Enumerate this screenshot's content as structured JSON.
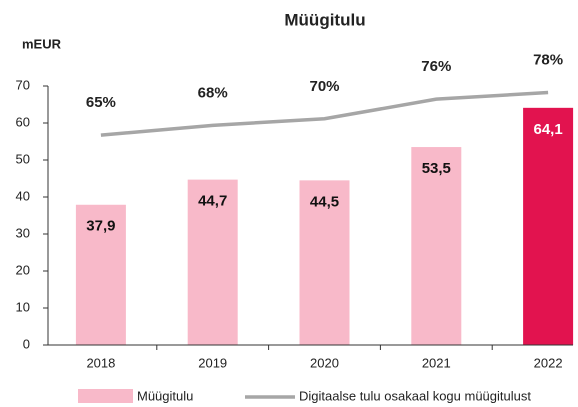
{
  "chart_data": {
    "type": "bar_line",
    "title": "Müügitulu",
    "y_label": "mEUR",
    "categories": [
      "2018",
      "2019",
      "2020",
      "2021",
      "2022"
    ],
    "series": [
      {
        "name": "Müügitulu",
        "color": "#f8b9c9",
        "colors": [
          "#f8b9c9",
          "#f8b9c9",
          "#f8b9c9",
          "#f8b9c9",
          "#e2134f"
        ],
        "label_colors": [
          "#111111",
          "#111111",
          "#111111",
          "#111111",
          "#ffffff"
        ],
        "values": [
          37.9,
          44.7,
          44.5,
          53.5,
          64.1
        ],
        "value_labels": [
          "37,9",
          "44,7",
          "44,5",
          "53,5",
          "64,1"
        ]
      },
      {
        "name": "Digitaalse tulu osakaal kogu müügitulust",
        "color": "#a6a6a6",
        "axis": "y2",
        "values": [
          65,
          68,
          70,
          76,
          78
        ],
        "value_labels": [
          "65%",
          "68%",
          "70%",
          "76%",
          "78%"
        ]
      }
    ],
    "ylim": [
      0,
      70
    ],
    "yticks": [
      0,
      10,
      20,
      30,
      40,
      50,
      60,
      70
    ],
    "y2lim": [
      1,
      80
    ],
    "legend": "bottom"
  }
}
